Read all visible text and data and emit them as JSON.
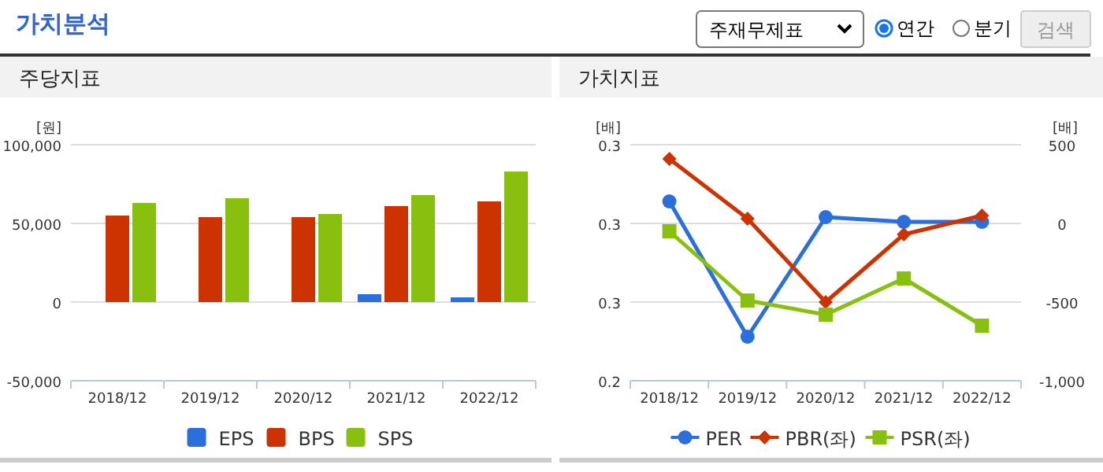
{
  "chart_data": [
    {
      "type": "other",
      "title": "가치분석",
      "annotations": [
        "주재무제표",
        "연간",
        "분기",
        "검색"
      ]
    },
    {
      "type": "bar",
      "title": "주당지표",
      "ylabel": "[원]",
      "categories": [
        "2018/12",
        "2019/12",
        "2020/12",
        "2021/12",
        "2022/12"
      ],
      "series": [
        {
          "name": "EPS",
          "color": "#2a6fdc",
          "values": [
            0,
            0,
            0,
            5000,
            3000
          ]
        },
        {
          "name": "BPS",
          "color": "#cc3300",
          "values": [
            55000,
            54000,
            54000,
            61000,
            64000
          ]
        },
        {
          "name": "SPS",
          "color": "#88c010",
          "values": [
            63000,
            66000,
            56000,
            68000,
            83000
          ]
        }
      ],
      "ylim": [
        -50000,
        100000
      ],
      "yticks": [
        {
          "value": -50000,
          "label": "-50,000"
        },
        0,
        {
          "value": 50000,
          "label": "50,000"
        },
        {
          "value": 100000,
          "label": "100,000"
        }
      ],
      "grid": "y",
      "legend": "bottom"
    },
    {
      "type": "line",
      "title": "가치지표",
      "ylabel": "[배]",
      "y2label": "[배]",
      "categories": [
        "2018/12",
        "2019/12",
        "2020/12",
        "2021/12",
        "2022/12"
      ],
      "series": [
        {
          "name": "PER",
          "color": "#2a6fdc",
          "marker": "circle",
          "values": [
            0.314,
            0.228,
            0.304,
            0.301,
            0.301
          ]
        },
        {
          "name": "PBR(좌)",
          "color": "#cc3300",
          "marker": "diamond",
          "axis": "y2",
          "values": [
            410,
            30,
            -500,
            -70,
            50
          ]
        },
        {
          "name": "PSR(좌)",
          "color": "#88c010",
          "marker": "square",
          "axis": "y2",
          "values": [
            -50,
            -490,
            -580,
            -350,
            -650
          ]
        }
      ],
      "ylim": [
        0.2,
        0.35
      ],
      "yticks": [
        {
          "value": 0.2,
          "label": "0.2"
        },
        {
          "value": 0.25,
          "label": "0.3"
        },
        {
          "value": 0.3,
          "label": "0.3"
        },
        {
          "value": 0.35,
          "label": "0.3"
        }
      ],
      "y2lim": [
        -1000,
        500
      ],
      "y2ticks": [
        {
          "value": -1000,
          "label": "-1,000"
        },
        -500,
        0,
        500
      ],
      "grid": "y",
      "legend": "bottom",
      "line_style": "solid"
    }
  ]
}
